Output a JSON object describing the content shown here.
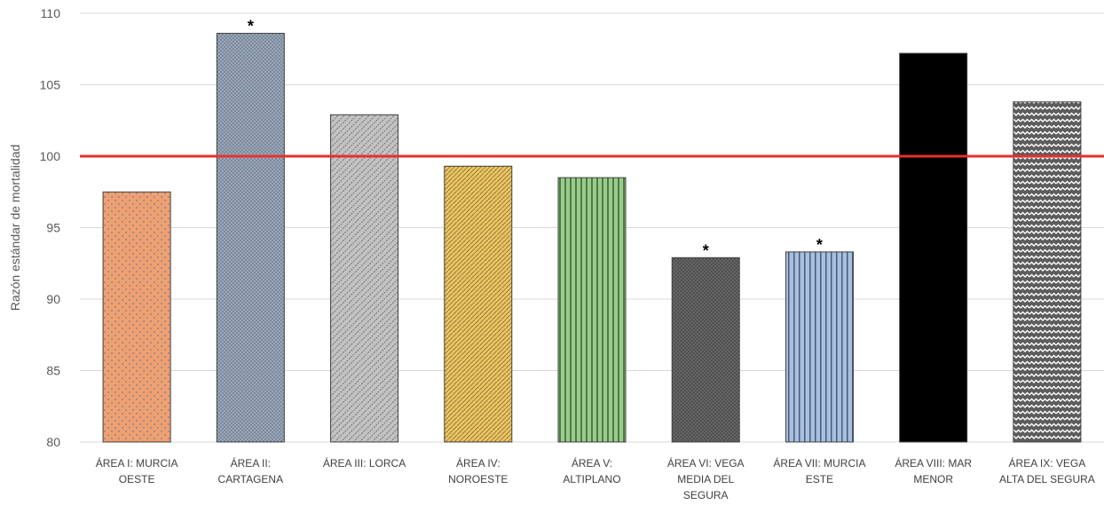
{
  "chart_data": {
    "type": "bar",
    "title": "",
    "xlabel": "",
    "ylabel": "Razón estándar de mortalidad",
    "ylim": [
      80,
      110
    ],
    "yticks": [
      80,
      85,
      90,
      95,
      100,
      105,
      110
    ],
    "grid": true,
    "legend": "none",
    "reference_line": {
      "value": 100,
      "color": "#e8302a"
    },
    "categories": [
      [
        "ÁREA I: MURCIA",
        "OESTE"
      ],
      [
        "ÁREA II:",
        "CARTAGENA"
      ],
      [
        "ÁREA III: LORCA"
      ],
      [
        "ÁREA IV:",
        "NOROESTE"
      ],
      [
        "ÁREA V:",
        "ALTIPLANO"
      ],
      [
        "ÁREA VI: VEGA",
        "MEDIA DEL",
        "SEGURA"
      ],
      [
        "ÁREA VII: MURCIA",
        "ESTE"
      ],
      [
        "ÁREA VIII: MAR",
        "MENOR"
      ],
      [
        "ÁREA IX: VEGA",
        "ALTA DEL SEGURA"
      ]
    ],
    "values": [
      97.5,
      108.6,
      102.9,
      99.3,
      98.5,
      92.9,
      93.3,
      107.2,
      103.8
    ],
    "significance_marks": [
      "",
      "*",
      "",
      "",
      "",
      "*",
      "*",
      "",
      ""
    ],
    "bar_fills": [
      "pat-dots-orange",
      "pat-dots-blue",
      "pat-diag-grey",
      "pat-diag-yellow",
      "pat-vstripe-green",
      "pat-cross-darkgrey",
      "pat-vstripe-blue",
      "solid-black",
      "pat-wave-grey"
    ]
  }
}
